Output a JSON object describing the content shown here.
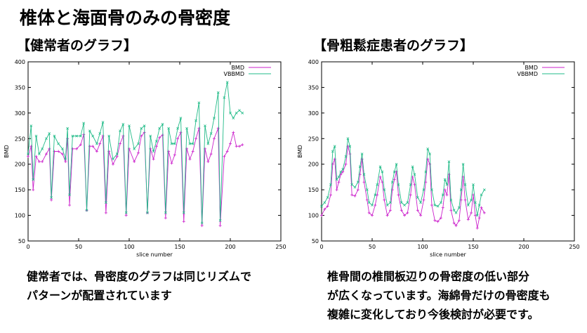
{
  "page": {
    "title": "椎体と海面骨のみの骨密度",
    "left_heading": "【健常者のグラフ】",
    "right_heading": "【骨粗鬆症患者のグラフ】",
    "left_caption": [
      "健常者では、骨密度のグラフは同じリズムで",
      "パターンが配置されています"
    ],
    "right_caption": [
      "椎骨間の椎間板辺りの骨密度の低い部分",
      "が広くなっています。海綿骨だけの骨密度も",
      "複雑に変化しており今後検討が必要です。"
    ]
  },
  "colors": {
    "BMD": "#cc22cc",
    "VBBMD": "#22bb88",
    "axis": "#000000",
    "grid": "#bbbbbb"
  },
  "chart_data": [
    {
      "type": "line",
      "xlabel": "slice number",
      "ylabel": "BMD",
      "xlim": [
        0,
        250
      ],
      "ylim": [
        50,
        400
      ],
      "xticks": [
        0,
        50,
        100,
        150,
        200,
        250
      ],
      "yticks": [
        50,
        100,
        150,
        200,
        250,
        300,
        350,
        400
      ],
      "legend_position": "top-right",
      "series": [
        {
          "name": "BMD",
          "points": [
            [
              0,
              215
            ],
            [
              3,
              235
            ],
            [
              5,
              150
            ],
            [
              8,
              215
            ],
            [
              11,
              205
            ],
            [
              14,
              205
            ],
            [
              18,
              220
            ],
            [
              21,
              230
            ],
            [
              23,
              130
            ],
            [
              26,
              225
            ],
            [
              30,
              225
            ],
            [
              34,
              220
            ],
            [
              37,
              205
            ],
            [
              39,
              250
            ],
            [
              41,
              120
            ],
            [
              44,
              230
            ],
            [
              48,
              230
            ],
            [
              52,
              238
            ],
            [
              55,
              258
            ],
            [
              58,
              110
            ],
            [
              61,
              235
            ],
            [
              64,
              235
            ],
            [
              68,
              225
            ],
            [
              71,
              240
            ],
            [
              74,
              255
            ],
            [
              77,
              105
            ],
            [
              80,
              225
            ],
            [
              84,
              200
            ],
            [
              88,
              215
            ],
            [
              91,
              240
            ],
            [
              94,
              255
            ],
            [
              97,
              100
            ],
            [
              100,
              230
            ],
            [
              105,
              205
            ],
            [
              109,
              222
            ],
            [
              112,
              255
            ],
            [
              115,
              262
            ],
            [
              118,
              105
            ],
            [
              121,
              230
            ],
            [
              124,
              210
            ],
            [
              127,
              235
            ],
            [
              130,
              252
            ],
            [
              133,
              257
            ],
            [
              136,
              95
            ],
            [
              139,
              225
            ],
            [
              142,
              202
            ],
            [
              145,
              218
            ],
            [
              148,
              250
            ],
            [
              151,
              262
            ],
            [
              154,
              88
            ],
            [
              157,
              230
            ],
            [
              160,
              210
            ],
            [
              163,
              225
            ],
            [
              166,
              250
            ],
            [
              169,
              270
            ],
            [
              172,
              80
            ],
            [
              175,
              230
            ],
            [
              178,
              205
            ],
            [
              181,
              220
            ],
            [
              184,
              250
            ],
            [
              188,
              270
            ],
            [
              190,
              80
            ],
            [
              194,
              215
            ],
            [
              197,
              225
            ],
            [
              200,
              240
            ],
            [
              203,
              262
            ],
            [
              206,
              235
            ],
            [
              209,
              235
            ],
            [
              212,
              238
            ]
          ]
        },
        {
          "name": "VBBMD",
          "points": [
            [
              0,
              220
            ],
            [
              3,
              275
            ],
            [
              5,
              170
            ],
            [
              8,
              255
            ],
            [
              11,
              220
            ],
            [
              14,
              230
            ],
            [
              18,
              250
            ],
            [
              21,
              260
            ],
            [
              23,
              135
            ],
            [
              26,
              255
            ],
            [
              30,
              240
            ],
            [
              34,
              230
            ],
            [
              37,
              210
            ],
            [
              39,
              270
            ],
            [
              41,
              140
            ],
            [
              44,
              255
            ],
            [
              48,
              255
            ],
            [
              52,
              255
            ],
            [
              55,
              280
            ],
            [
              58,
              110
            ],
            [
              61,
              265
            ],
            [
              64,
              255
            ],
            [
              68,
              240
            ],
            [
              71,
              260
            ],
            [
              74,
              282
            ],
            [
              77,
              125
            ],
            [
              80,
              255
            ],
            [
              84,
              210
            ],
            [
              88,
              220
            ],
            [
              91,
              265
            ],
            [
              94,
              278
            ],
            [
              97,
              105
            ],
            [
              100,
              275
            ],
            [
              105,
              230
            ],
            [
              109,
              240
            ],
            [
              112,
              270
            ],
            [
              115,
              275
            ],
            [
              118,
              105
            ],
            [
              121,
              255
            ],
            [
              124,
              225
            ],
            [
              127,
              245
            ],
            [
              130,
              270
            ],
            [
              133,
              278
            ],
            [
              136,
              105
            ],
            [
              139,
              270
            ],
            [
              142,
              240
            ],
            [
              145,
              240
            ],
            [
              148,
              270
            ],
            [
              151,
              290
            ],
            [
              154,
              105
            ],
            [
              157,
              270
            ],
            [
              160,
              240
            ],
            [
              163,
              240
            ],
            [
              166,
              285
            ],
            [
              169,
              320
            ],
            [
              172,
              85
            ],
            [
              175,
              275
            ],
            [
              178,
              240
            ],
            [
              181,
              260
            ],
            [
              184,
              290
            ],
            [
              188,
              340
            ],
            [
              190,
              90
            ],
            [
              194,
              330
            ],
            [
              197,
              360
            ],
            [
              200,
              300
            ],
            [
              203,
              290
            ],
            [
              206,
              300
            ],
            [
              209,
              305
            ],
            [
              212,
              300
            ]
          ]
        }
      ]
    },
    {
      "type": "line",
      "xlabel": "slice number",
      "ylabel": "BMD",
      "xlim": [
        0,
        250
      ],
      "ylim": [
        50,
        400
      ],
      "xticks": [
        0,
        50,
        100,
        150,
        200,
        250
      ],
      "yticks": [
        50,
        100,
        150,
        200,
        250,
        300,
        350,
        400
      ],
      "legend_position": "top-right",
      "series": [
        {
          "name": "BMD",
          "points": [
            [
              0,
              100
            ],
            [
              3,
              112
            ],
            [
              6,
              118
            ],
            [
              9,
              140
            ],
            [
              11,
              200
            ],
            [
              13,
              210
            ],
            [
              15,
              150
            ],
            [
              17,
              165
            ],
            [
              19,
              180
            ],
            [
              21,
              185
            ],
            [
              24,
              200
            ],
            [
              26,
              235
            ],
            [
              28,
              220
            ],
            [
              30,
              140
            ],
            [
              33,
              138
            ],
            [
              36,
              150
            ],
            [
              38,
              180
            ],
            [
              40,
              210
            ],
            [
              42,
              165
            ],
            [
              45,
              130
            ],
            [
              47,
              105
            ],
            [
              50,
              100
            ],
            [
              53,
              120
            ],
            [
              55,
              140
            ],
            [
              58,
              175
            ],
            [
              60,
              165
            ],
            [
              62,
              130
            ],
            [
              65,
              100
            ],
            [
              68,
              110
            ],
            [
              70,
              150
            ],
            [
              72,
              170
            ],
            [
              74,
              185
            ],
            [
              76,
              140
            ],
            [
              79,
              110
            ],
            [
              82,
              100
            ],
            [
              85,
              105
            ],
            [
              88,
              140
            ],
            [
              90,
              175
            ],
            [
              92,
              160
            ],
            [
              95,
              110
            ],
            [
              98,
              100
            ],
            [
              101,
              130
            ],
            [
              103,
              165
            ],
            [
              105,
              210
            ],
            [
              107,
              200
            ],
            [
              109,
              120
            ],
            [
              112,
              90
            ],
            [
              115,
              88
            ],
            [
              118,
              95
            ],
            [
              120,
              115
            ],
            [
              122,
              150
            ],
            [
              124,
              140
            ],
            [
              126,
              180
            ],
            [
              128,
              110
            ],
            [
              131,
              85
            ],
            [
              133,
              80
            ],
            [
              136,
              90
            ],
            [
              138,
              130
            ],
            [
              140,
              175
            ],
            [
              142,
              130
            ],
            [
              145,
              92
            ],
            [
              148,
              105
            ],
            [
              150,
              140
            ],
            [
              152,
              100
            ],
            [
              154,
              75
            ],
            [
              156,
              95
            ],
            [
              158,
              115
            ],
            [
              161,
              105
            ]
          ]
        },
        {
          "name": "VBBMD",
          "points": [
            [
              0,
              118
            ],
            [
              3,
              125
            ],
            [
              6,
              135
            ],
            [
              9,
              160
            ],
            [
              11,
              225
            ],
            [
              13,
              235
            ],
            [
              15,
              170
            ],
            [
              17,
              175
            ],
            [
              19,
              185
            ],
            [
              21,
              190
            ],
            [
              24,
              215
            ],
            [
              26,
              250
            ],
            [
              28,
              235
            ],
            [
              30,
              160
            ],
            [
              33,
              155
            ],
            [
              36,
              165
            ],
            [
              38,
              195
            ],
            [
              40,
              220
            ],
            [
              42,
              180
            ],
            [
              45,
              150
            ],
            [
              47,
              125
            ],
            [
              50,
              120
            ],
            [
              53,
              140
            ],
            [
              55,
              160
            ],
            [
              58,
              195
            ],
            [
              60,
              185
            ],
            [
              62,
              150
            ],
            [
              65,
              120
            ],
            [
              68,
              125
            ],
            [
              70,
              165
            ],
            [
              72,
              185
            ],
            [
              74,
              200
            ],
            [
              76,
              160
            ],
            [
              79,
              125
            ],
            [
              82,
              120
            ],
            [
              85,
              125
            ],
            [
              88,
              160
            ],
            [
              90,
              195
            ],
            [
              92,
              180
            ],
            [
              95,
              135
            ],
            [
              98,
              125
            ],
            [
              101,
              150
            ],
            [
              103,
              185
            ],
            [
              105,
              230
            ],
            [
              107,
              220
            ],
            [
              109,
              150
            ],
            [
              112,
              120
            ],
            [
              115,
              118
            ],
            [
              118,
              125
            ],
            [
              120,
              140
            ],
            [
              122,
              170
            ],
            [
              124,
              160
            ],
            [
              126,
              205
            ],
            [
              128,
              130
            ],
            [
              131,
              110
            ],
            [
              133,
              105
            ],
            [
              136,
              115
            ],
            [
              138,
              150
            ],
            [
              140,
              200
            ],
            [
              142,
              160
            ],
            [
              145,
              120
            ],
            [
              148,
              130
            ],
            [
              150,
              160
            ],
            [
              152,
              125
            ],
            [
              154,
              100
            ],
            [
              156,
              120
            ],
            [
              158,
              140
            ],
            [
              161,
              150
            ]
          ]
        }
      ]
    }
  ]
}
